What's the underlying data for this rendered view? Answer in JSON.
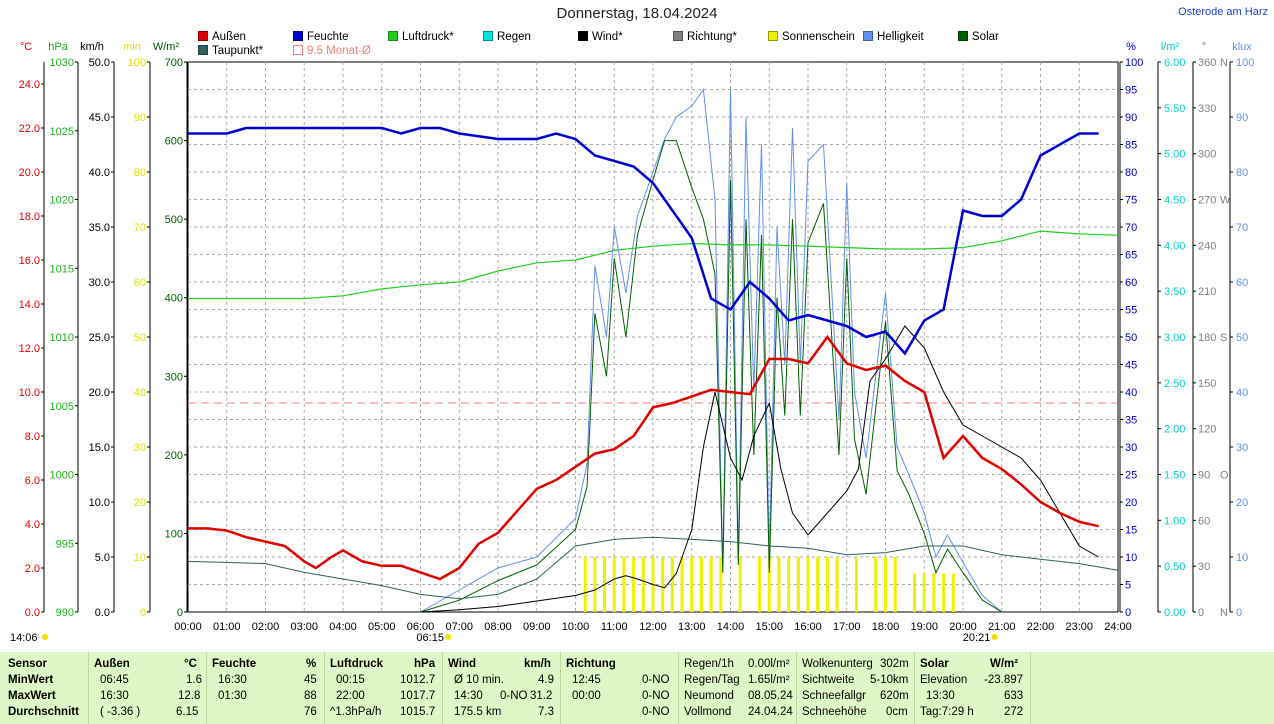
{
  "title": "Donnerstag, 18.04.2024",
  "location": "Osterode am Harz",
  "legend": [
    {
      "label": "Außen",
      "color": "#e00000"
    },
    {
      "label": "Feuchte",
      "color": "#0000d0"
    },
    {
      "label": "Luftdruck*",
      "color": "#20d020"
    },
    {
      "label": "Regen",
      "color": "#00e0e0"
    },
    {
      "label": "Wind*",
      "color": "#000000"
    },
    {
      "label": "Richtung*",
      "color": "#808080"
    },
    {
      "label": "Sonnenschein",
      "color": "#f0f000"
    },
    {
      "label": "Helligkeit",
      "color": "#6090f0"
    },
    {
      "label": "Solar",
      "color": "#006000"
    },
    {
      "label": "Taupunkt*",
      "color": "#306060"
    },
    {
      "label": "9.5 Monat-Ø",
      "color": "#f08080"
    }
  ],
  "axes_left": {
    "celsius": {
      "unit": "°C",
      "ticks": [
        "24.0",
        "22.0",
        "20.0",
        "18.0",
        "16.0",
        "14.0",
        "12.0",
        "10.0",
        "8.0",
        "6.0",
        "4.0",
        "2.0",
        "0.0"
      ]
    },
    "hpa": {
      "unit": "hPa",
      "ticks": [
        "1030",
        "1025",
        "1020",
        "1015",
        "1010",
        "1005",
        "1000",
        "995",
        "990"
      ]
    },
    "kmh": {
      "unit": "km/h",
      "ticks": [
        "50.0",
        "45.0",
        "40.0",
        "35.0",
        "30.0",
        "25.0",
        "20.0",
        "15.0",
        "10.0",
        "5.0",
        "0.0"
      ]
    },
    "min": {
      "unit": "min",
      "ticks": [
        "100",
        "90",
        "80",
        "70",
        "60",
        "50",
        "40",
        "30",
        "20",
        "10",
        "0"
      ]
    },
    "wm2": {
      "unit": "W/m²",
      "ticks": [
        "700",
        "600",
        "500",
        "400",
        "300",
        "200",
        "100",
        "0"
      ]
    }
  },
  "axes_right": {
    "pct": {
      "unit": "%",
      "ticks": [
        "100",
        "95",
        "90",
        "85",
        "80",
        "75",
        "70",
        "65",
        "60",
        "55",
        "50",
        "45",
        "40",
        "35",
        "30",
        "25",
        "20",
        "15",
        "10",
        "5",
        "0"
      ]
    },
    "lm2": {
      "unit": "l/m²",
      "ticks": [
        "6.00",
        "5.50",
        "5.00",
        "4.50",
        "4.00",
        "3.50",
        "3.00",
        "2.50",
        "2.00",
        "1.50",
        "1.00",
        "0.50",
        "0.00"
      ]
    },
    "deg": {
      "unit": "°",
      "ticks": [
        "360",
        "330",
        "300",
        "270",
        "240",
        "210",
        "180",
        "150",
        "120",
        "90",
        "60",
        "30",
        "0"
      ]
    },
    "dir": {
      "ticks": [
        "N",
        "",
        "",
        "W",
        "",
        "",
        "S",
        "",
        "",
        "O",
        "",
        "",
        "N"
      ]
    },
    "klux": {
      "unit": "klux",
      "ticks": [
        "100",
        "90",
        "80",
        "70",
        "60",
        "50",
        "40",
        "30",
        "20",
        "10",
        "0"
      ]
    }
  },
  "x_ticks": [
    "00:00",
    "01:00",
    "02:00",
    "03:00",
    "04:00",
    "05:00",
    "06:00",
    "07:00",
    "08:00",
    "09:00",
    "10:00",
    "11:00",
    "12:00",
    "13:00",
    "14:00",
    "15:00",
    "16:00",
    "17:00",
    "18:00",
    "19:00",
    "20:00",
    "21:00",
    "22:00",
    "23:00",
    "24:00"
  ],
  "sunrise": "06:15",
  "sunset": "20:21",
  "now_time": "14:06",
  "chart_data": {
    "type": "line",
    "x_unit": "hour",
    "series": [
      {
        "name": "Außen",
        "unit": "°C",
        "color": "#e00000",
        "x": [
          0,
          0.5,
          1,
          1.5,
          2,
          2.5,
          3,
          3.3,
          3.7,
          4,
          4.5,
          5,
          5.5,
          6,
          6.5,
          7,
          7.5,
          8,
          8.5,
          9,
          9.5,
          10,
          10.5,
          11,
          11.5,
          12,
          12.5,
          13,
          13.5,
          14,
          14.5,
          15,
          15.5,
          16,
          16.5,
          17,
          17.5,
          18,
          18.5,
          19,
          19.5,
          20,
          20.5,
          21,
          21.5,
          22,
          22.5,
          23,
          23.5
        ],
        "y": [
          3.8,
          3.8,
          3.7,
          3.4,
          3.2,
          3.0,
          2.3,
          2.0,
          2.5,
          2.8,
          2.3,
          2.1,
          2.1,
          1.8,
          1.5,
          2.0,
          3.1,
          3.6,
          4.6,
          5.6,
          6.0,
          6.6,
          7.2,
          7.4,
          8.0,
          9.3,
          9.5,
          9.8,
          10.1,
          10.0,
          9.9,
          11.5,
          11.5,
          11.3,
          12.5,
          11.3,
          11.0,
          11.2,
          10.5,
          10.0,
          7.0,
          8.0,
          7.0,
          6.5,
          5.8,
          5.0,
          4.5,
          4.1,
          3.9
        ]
      },
      {
        "name": "Feuchte",
        "unit": "%",
        "color": "#0000d0",
        "x": [
          0,
          1,
          1.5,
          2,
          3,
          4,
          5,
          5.5,
          6,
          6.5,
          7,
          8,
          9,
          9.5,
          10,
          10.5,
          11,
          11.5,
          12,
          12.5,
          13,
          13.5,
          14,
          14.5,
          15,
          15.5,
          16,
          16.5,
          17,
          17.5,
          18,
          18.5,
          19,
          19.5,
          20,
          20.5,
          21,
          21.5,
          22,
          23,
          23.5
        ],
        "y": [
          87,
          87,
          88,
          88,
          88,
          88,
          88,
          87,
          88,
          88,
          87,
          86,
          86,
          87,
          86,
          83,
          82,
          81,
          78,
          73,
          68,
          57,
          55,
          60,
          57,
          53,
          54,
          53,
          52,
          50,
          51,
          47,
          53,
          55,
          73,
          72,
          72,
          75,
          83,
          87,
          87
        ]
      },
      {
        "name": "Luftdruck",
        "unit": "hPa",
        "color": "#20d020",
        "x": [
          0,
          3,
          4,
          5,
          6,
          7,
          8,
          9,
          10,
          11,
          12,
          13,
          14,
          15,
          16,
          17,
          18,
          19,
          20,
          21,
          22,
          23,
          24
        ],
        "y": [
          1012.8,
          1012.8,
          1013.0,
          1013.5,
          1013.8,
          1014.0,
          1014.8,
          1015.4,
          1015.6,
          1016.3,
          1016.6,
          1016.8,
          1016.7,
          1016.7,
          1016.6,
          1016.5,
          1016.4,
          1016.4,
          1016.5,
          1017.0,
          1017.7,
          1017.5,
          1017.4
        ]
      },
      {
        "name": "Wind",
        "unit": "km/h",
        "color": "#000000",
        "x": [
          0,
          4,
          6,
          7,
          8,
          9,
          10,
          10.5,
          11,
          11.3,
          11.6,
          12,
          12.3,
          12.6,
          13,
          13.3,
          13.6,
          14,
          14.3,
          14.6,
          15,
          15.3,
          15.6,
          16,
          16.5,
          17,
          17.3,
          17.6,
          18,
          18.5,
          19,
          19.5,
          20,
          20.5,
          21,
          21.5,
          22,
          22.5,
          23,
          23.5
        ],
        "y": [
          0,
          0,
          0,
          0.2,
          0.5,
          1.0,
          1.5,
          2.0,
          3.0,
          3.3,
          3.0,
          2.5,
          2.2,
          3.5,
          7.5,
          15,
          20,
          14,
          12,
          16,
          19,
          13,
          9,
          7,
          9,
          11,
          13,
          21,
          23,
          26,
          24,
          20,
          17,
          16,
          15,
          14,
          12,
          9,
          6,
          5
        ]
      },
      {
        "name": "Taupunkt",
        "unit": "°C",
        "color": "#306060",
        "x": [
          0,
          2,
          3,
          4,
          5,
          6,
          7,
          8,
          9,
          10,
          11,
          12,
          13,
          14,
          15,
          16,
          17,
          18,
          19,
          20,
          21,
          22,
          23,
          24
        ],
        "y": [
          2.3,
          2.2,
          1.8,
          1.5,
          1.2,
          0.8,
          0.6,
          0.8,
          1.5,
          3.0,
          3.3,
          3.4,
          3.3,
          3.2,
          3.0,
          2.9,
          2.6,
          2.7,
          3.0,
          3.0,
          2.6,
          2.4,
          2.2,
          1.9
        ]
      },
      {
        "name": "Solar",
        "unit": "W/m²",
        "color": "#006000",
        "x": [
          6,
          7,
          8,
          9,
          10,
          10.3,
          10.5,
          10.8,
          11,
          11.3,
          11.6,
          12,
          12.3,
          12.6,
          13,
          13.3,
          13.6,
          13.8,
          14,
          14.2,
          14.4,
          14.6,
          14.8,
          15,
          15.2,
          15.4,
          15.6,
          15.8,
          16,
          16.4,
          16.8,
          17,
          17.2,
          17.5,
          18,
          18.3,
          18.6,
          19,
          19.3,
          19.6,
          20,
          20.5,
          21
        ],
        "y": [
          0,
          15,
          40,
          60,
          105,
          160,
          380,
          300,
          450,
          350,
          480,
          550,
          600,
          600,
          540,
          500,
          430,
          50,
          550,
          60,
          500,
          200,
          480,
          50,
          400,
          250,
          500,
          250,
          470,
          520,
          200,
          450,
          220,
          150,
          370,
          180,
          150,
          100,
          50,
          80,
          50,
          15,
          0
        ]
      },
      {
        "name": "Helligkeit",
        "unit": "klux",
        "color": "#6090f0",
        "x": [
          6,
          7,
          8,
          9,
          10,
          10.3,
          10.5,
          10.8,
          11,
          11.3,
          11.6,
          12,
          12.3,
          12.6,
          13,
          13.3,
          13.6,
          13.8,
          14,
          14.2,
          14.4,
          14.6,
          14.8,
          15,
          15.2,
          15.4,
          15.6,
          15.8,
          16,
          16.4,
          16.8,
          17,
          17.2,
          17.5,
          18,
          18.3,
          18.6,
          19,
          19.3,
          19.6,
          20,
          20.5,
          21
        ],
        "y": [
          0,
          4,
          8,
          10,
          17,
          27,
          63,
          50,
          70,
          58,
          72,
          80,
          86,
          90,
          92,
          95,
          75,
          8,
          95,
          10,
          90,
          40,
          85,
          10,
          70,
          45,
          88,
          45,
          82,
          85,
          35,
          78,
          40,
          28,
          58,
          30,
          25,
          18,
          10,
          14,
          9,
          3,
          0
        ]
      }
    ],
    "sunshine_bars_hours": [
      10.25,
      10.5,
      10.75,
      11.0,
      11.25,
      11.5,
      11.75,
      12.0,
      12.25,
      12.5,
      12.75,
      13.0,
      13.25,
      13.5,
      13.75,
      14.25,
      14.75,
      15.0,
      15.25,
      15.5,
      15.75,
      16.0,
      16.25,
      16.5,
      16.75,
      17.25,
      17.75,
      18.0,
      18.25,
      18.75,
      19.0,
      19.25,
      19.5,
      19.75
    ],
    "sunshine_bars_min": [
      10,
      10,
      10,
      10,
      10,
      10,
      10,
      10,
      10,
      10,
      10,
      10,
      10,
      10,
      10,
      10,
      10,
      10,
      10,
      10,
      10,
      10,
      10,
      10,
      10,
      10,
      10,
      10,
      10,
      7,
      7,
      7,
      7,
      7
    ],
    "monthly_avg_celsius": 9.5,
    "ranges": {
      "celsius": [
        0,
        25
      ],
      "hpa": [
        990,
        1030
      ],
      "kmh": [
        0,
        50
      ],
      "min": [
        0,
        100
      ],
      "wm2": [
        0,
        700
      ],
      "pct": [
        0,
        100
      ],
      "lm2": [
        0,
        6
      ],
      "klux": [
        0,
        100
      ]
    },
    "xlim": [
      0,
      24
    ],
    "grid": true
  },
  "stats": {
    "rows": [
      "Sensor",
      "MinWert",
      "MaxWert",
      "Durchschnitt"
    ],
    "aussen": {
      "h1": "Außen",
      "h2": "°C",
      "min_t": "06:45",
      "min_v": "1.6",
      "max_t": "16:30",
      "max_v": "12.8",
      "avg_t": "( -3.36 )",
      "avg_v": "6.15"
    },
    "feuchte": {
      "h1": "Feuchte",
      "h2": "%",
      "min_t": "16:30",
      "min_v": "45",
      "max_t": "01:30",
      "max_v": "88",
      "avg_v": "76"
    },
    "luftdruck": {
      "h1": "Luftdruck",
      "h2": "hPa",
      "min_t": "00:15",
      "min_v": "1012.7",
      "max_t": "22:00",
      "max_v": "1017.7",
      "avg_t": "^1.3hPa/h",
      "avg_v": "1015.7"
    },
    "wind": {
      "h1": "Wind",
      "h2": "km/h",
      "min_t": "Ø 10 min.",
      "min_v": "4.9",
      "max_t": "14:30",
      "max_d": "0-NO",
      "max_v": "31.2",
      "avg_t": "175.5 km",
      "avg_v": "7.3"
    },
    "richtung": {
      "h1": "Richtung",
      "min_t": "12:45",
      "min_v": "0-NO",
      "max_t": "00:00",
      "max_v": "0-NO",
      "avg_v": "0-NO"
    },
    "regen": {
      "r1_l": "Regen/1h",
      "r1_v": "0.00l/m²",
      "r2_l": "Regen/Tag",
      "r2_v": "1.65l/m²",
      "r3_l": "Neumond",
      "r3_v": "08.05.24",
      "r4_l": "Vollmond",
      "r4_v": "24.04.24"
    },
    "wolken": {
      "r1_l": "Wolkenunterg",
      "r1_v": "302m",
      "r2_l": "Sichtweite",
      "r2_v": "5-10km",
      "r3_l": "Schneefallgr",
      "r3_v": "620m",
      "r4_l": "Schneehöhe",
      "r4_v": "0cm"
    },
    "solar": {
      "h1": "Solar",
      "h2": "W/m²",
      "r1_l": "Elevation",
      "r1_v": "-23.897",
      "r2_t": "13:30",
      "r2_v": "633",
      "r3_l": "Tag:7:29 h",
      "r3_v": "272"
    }
  }
}
